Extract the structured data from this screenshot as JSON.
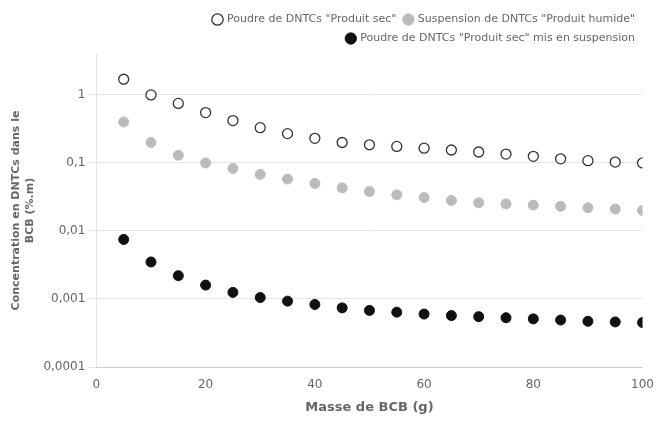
{
  "chart_data": {
    "type": "scatter",
    "x_label": "Masse de BCB (g)",
    "y_label": "Concentration en DNTCs dans le\nBCB (%.m)",
    "x": [
      5,
      10,
      15,
      20,
      25,
      30,
      35,
      40,
      45,
      50,
      55,
      60,
      65,
      70,
      75,
      80,
      85,
      90,
      95,
      100
    ],
    "series": [
      {
        "name": "Poudre de DNTCs \"Produit sec\"",
        "color": "#333333",
        "marker": "open_circle",
        "values": [
          1.7,
          1.0,
          0.75,
          0.55,
          0.42,
          0.33,
          0.27,
          0.23,
          0.2,
          0.185,
          0.175,
          0.165,
          0.155,
          0.145,
          0.135,
          0.125,
          0.115,
          0.108,
          0.103,
          0.1
        ]
      },
      {
        "name": "Suspension de DNTCs \"Produit humide\"",
        "color": "#bbbbbb",
        "marker": "circle",
        "values": [
          0.4,
          0.2,
          0.13,
          0.1,
          0.083,
          0.068,
          0.058,
          0.05,
          0.043,
          0.038,
          0.034,
          0.031,
          0.028,
          0.026,
          0.025,
          0.024,
          0.023,
          0.022,
          0.021,
          0.02
        ]
      },
      {
        "name": "Poudre de DNTCs \"Produit sec\" mis en suspension",
        "color": "#111111",
        "marker": "circle",
        "values": [
          0.0075,
          0.0035,
          0.0022,
          0.0016,
          0.00125,
          0.00105,
          0.00093,
          0.00083,
          0.00074,
          0.00068,
          0.00064,
          0.0006,
          0.00057,
          0.00055,
          0.00053,
          0.00051,
          0.00049,
          0.00047,
          0.00046,
          0.00045
        ]
      }
    ],
    "xlim": [
      0,
      100
    ],
    "xticks": [
      0,
      20,
      40,
      60,
      80,
      100
    ],
    "ylim": [
      0.0001,
      4.0
    ],
    "yticks": [
      {
        "value": 0.0001,
        "label": "0,0001"
      },
      {
        "value": 0.001,
        "label": "0,001"
      },
      {
        "value": 0.01,
        "label": "0,01"
      },
      {
        "value": 0.1,
        "label": "0,1"
      },
      1
    ],
    "log": "y",
    "grid": "y",
    "legend": "upper right"
  }
}
